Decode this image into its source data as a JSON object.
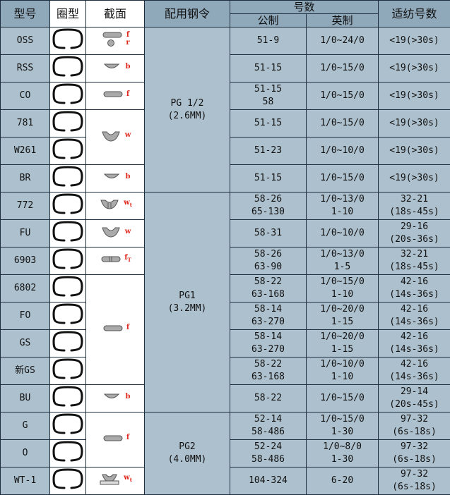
{
  "headers": {
    "model": "型号",
    "ring_type": "圈型",
    "section": "截面",
    "steel_ring": "配用钢令",
    "count": "号数",
    "metric": "公制",
    "imperial": "英制",
    "suitable": "适纺号数"
  },
  "colors": {
    "header_bg": "#8fa9bb",
    "cell_bg": "#adc0cd",
    "border": "#1c2e3e",
    "section_label": "#e0281e"
  },
  "steel_groups": [
    {
      "name": "PG 1/2",
      "size": "(2.6MM)",
      "rows": 6
    },
    {
      "name": "PG1",
      "size": "(3.2MM)",
      "rows": 8
    },
    {
      "name": "PG2",
      "size": "(4.0MM)",
      "rows": 3
    }
  ],
  "sections": [
    {
      "shape": "flat-and-round",
      "labels": [
        "f",
        "r"
      ],
      "sub": "",
      "rows": 1
    },
    {
      "shape": "half-round",
      "labels": [
        "b"
      ],
      "sub": "",
      "rows": 1
    },
    {
      "shape": "flat",
      "labels": [
        "f"
      ],
      "sub": "",
      "rows": 1
    },
    {
      "shape": "wing",
      "labels": [
        "w"
      ],
      "sub": "",
      "rows": 2
    },
    {
      "shape": "half-round",
      "labels": [
        "b"
      ],
      "sub": "",
      "rows": 1
    },
    {
      "shape": "wing-split",
      "labels": [
        "w"
      ],
      "sub": "t",
      "rows": 1
    },
    {
      "shape": "wing",
      "labels": [
        "w"
      ],
      "sub": "",
      "rows": 1
    },
    {
      "shape": "flat-split",
      "labels": [
        "f"
      ],
      "sub": "T",
      "rows": 1
    },
    {
      "shape": "flat",
      "labels": [
        "f"
      ],
      "sub": "",
      "rows": 4
    },
    {
      "shape": "half-round",
      "labels": [
        "b"
      ],
      "sub": "",
      "rows": 1
    },
    {
      "shape": "flat",
      "labels": [
        "f"
      ],
      "sub": "",
      "rows": 2
    },
    {
      "shape": "wing-base",
      "labels": [
        "w"
      ],
      "sub": "t",
      "rows": 1
    }
  ],
  "rows": [
    {
      "model": "OSS",
      "metric": [
        "51-9"
      ],
      "imperial": [
        "1/0~24/0"
      ],
      "suitable": [
        "<19(>30s)"
      ]
    },
    {
      "model": "RSS",
      "metric": [
        "51-15"
      ],
      "imperial": [
        "1/0~15/0"
      ],
      "suitable": [
        "<19(>30s)"
      ]
    },
    {
      "model": "CO",
      "metric": [
        "51-15",
        "58"
      ],
      "imperial": [
        "1/0~15/0"
      ],
      "suitable": [
        "<19(>30s)"
      ]
    },
    {
      "model": "781",
      "metric": [
        "51-15"
      ],
      "imperial": [
        "1/0~15/0"
      ],
      "suitable": [
        "<19(>30s)"
      ]
    },
    {
      "model": "W261",
      "metric": [
        "51-23"
      ],
      "imperial": [
        "1/0~10/0"
      ],
      "suitable": [
        "<19(>30s)"
      ]
    },
    {
      "model": "BR",
      "metric": [
        "51-15"
      ],
      "imperial": [
        "1/0~15/0"
      ],
      "suitable": [
        "<19(>30s)"
      ]
    },
    {
      "model": "772",
      "metric": [
        "58-26",
        "65-130"
      ],
      "imperial": [
        "1/0~13/0",
        "1-10"
      ],
      "suitable": [
        "32-21",
        "(18s-45s)"
      ]
    },
    {
      "model": "FU",
      "metric": [
        "58-31"
      ],
      "imperial": [
        "1/0~10/0"
      ],
      "suitable": [
        "29-16",
        "(20s-36s)"
      ]
    },
    {
      "model": "6903",
      "metric": [
        "58-26",
        "63-90"
      ],
      "imperial": [
        "1/0~13/0",
        "1-5"
      ],
      "suitable": [
        "32-21",
        "(18s-45s)"
      ]
    },
    {
      "model": "6802",
      "metric": [
        "58-22",
        "63-168"
      ],
      "imperial": [
        "1/0~15/0",
        "1-10"
      ],
      "suitable": [
        "42-16",
        "(14s-36s)"
      ]
    },
    {
      "model": "FO",
      "metric": [
        "58-14",
        "63-270"
      ],
      "imperial": [
        "1/0~20/0",
        "1-15"
      ],
      "suitable": [
        "42-16",
        "(14s-36s)"
      ]
    },
    {
      "model": "GS",
      "metric": [
        "58-14",
        "63-270"
      ],
      "imperial": [
        "1/0~20/0",
        "1-15"
      ],
      "suitable": [
        "42-16",
        "(14s-36s)"
      ]
    },
    {
      "model": "新GS",
      "metric": [
        "58-22",
        "63-168"
      ],
      "imperial": [
        "1/0~10/0",
        "1-10"
      ],
      "suitable": [
        "42-16",
        "(14s-36s)"
      ]
    },
    {
      "model": "BU",
      "metric": [
        "58-22"
      ],
      "imperial": [
        "1/0~15/0"
      ],
      "suitable": [
        "29-14",
        "(20s-45s)"
      ]
    },
    {
      "model": "G",
      "metric": [
        "52-14",
        "58-486"
      ],
      "imperial": [
        "1/0~15/0",
        "1-30"
      ],
      "suitable": [
        "97-32",
        "(6s-18s)"
      ]
    },
    {
      "model": "O",
      "metric": [
        "52-24",
        "58-486"
      ],
      "imperial": [
        "1/0~8/0",
        "1-30"
      ],
      "suitable": [
        "97-32",
        "(6s-18s)"
      ]
    },
    {
      "model": "WT-1",
      "metric": [
        "104-324"
      ],
      "imperial": [
        "6-20"
      ],
      "suitable": [
        "97-32",
        "(6s-18s)"
      ]
    }
  ]
}
